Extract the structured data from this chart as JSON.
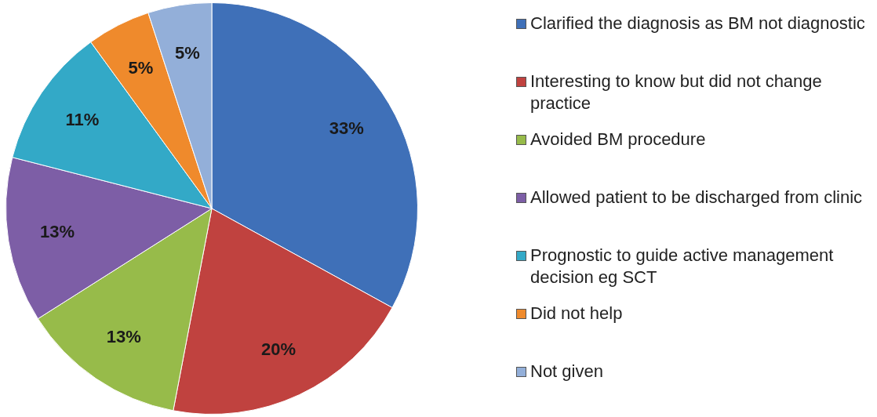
{
  "chart_data": {
    "type": "pie",
    "categories": [
      "Clarified the diagnosis as BM not diagnostic",
      "Interesting to know but did not change practice",
      "Avoided BM procedure",
      "Allowed patient to be discharged from clinic",
      "Prognostic to guide active management decision eg SCT",
      "Did not help",
      "Not given"
    ],
    "values": [
      33,
      20,
      13,
      13,
      11,
      5,
      5
    ],
    "value_labels": [
      "33%",
      "20%",
      "13%",
      "13%",
      "11%",
      "5%",
      "5%"
    ],
    "colors": [
      "#3f70b8",
      "#c0423f",
      "#97bb4a",
      "#7d5ea6",
      "#33a9c7",
      "#ef8a2c",
      "#93afd9"
    ],
    "legend": "right"
  }
}
